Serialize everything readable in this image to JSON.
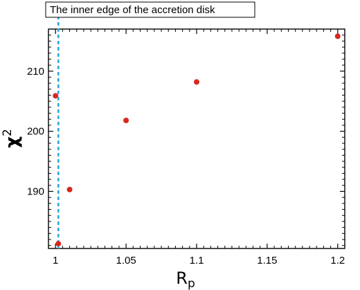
{
  "chart_data": {
    "type": "scatter",
    "title": "",
    "xlabel_main": "R",
    "xlabel_sub": "p",
    "ylabel_main": "χ",
    "ylabel_sup": "2",
    "xlim": [
      0.995,
      1.205
    ],
    "ylim": [
      180.5,
      217
    ],
    "x_ticks": [
      1,
      1.05,
      1.1,
      1.15,
      1.2
    ],
    "x_tick_labels": [
      "1",
      "1.05",
      "1.1",
      "1.15",
      "1.2"
    ],
    "y_ticks": [
      190,
      200,
      210
    ],
    "y_tick_labels": [
      "190",
      "200",
      "210"
    ],
    "grid": false,
    "points": [
      {
        "x": 1.0,
        "y": 205.9
      },
      {
        "x": 1.002,
        "y": 181.3
      },
      {
        "x": 1.01,
        "y": 190.3
      },
      {
        "x": 1.05,
        "y": 201.8
      },
      {
        "x": 1.1,
        "y": 208.2
      },
      {
        "x": 1.2,
        "y": 215.8
      }
    ],
    "point_color": "#d7281f",
    "vline": {
      "x": 1.002,
      "color": "#2aa8e0",
      "style": "dashed"
    },
    "annotation": "The inner edge of the accretion disk"
  }
}
